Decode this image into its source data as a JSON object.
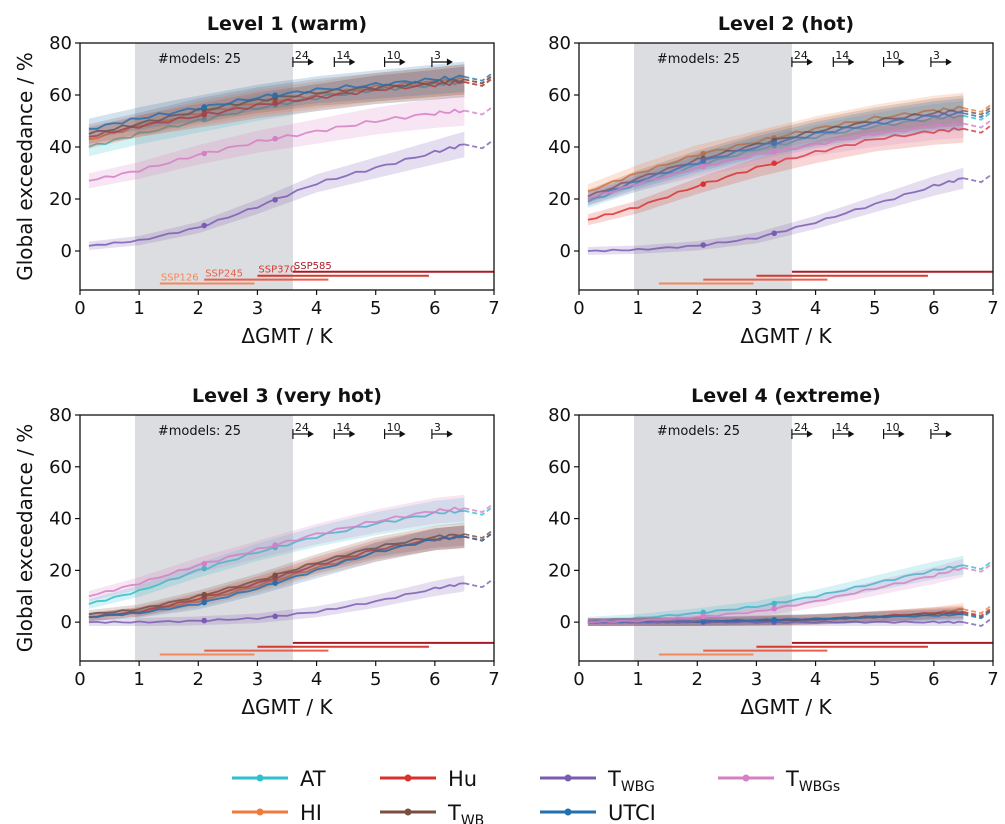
{
  "chart_data": [
    {
      "type": "line",
      "title": "Level 1 (warm)",
      "xlabel": "ΔGMT / K",
      "ylabel": "Global exceedance / %",
      "xlim": [
        0,
        7
      ],
      "ylim": [
        -15,
        80
      ],
      "xticks": [
        "0",
        "1",
        "2",
        "3",
        "4",
        "5",
        "6",
        "7"
      ],
      "yticks": [
        "0",
        "20",
        "40",
        "60",
        "80"
      ],
      "shaded_x": [
        0.93,
        3.6
      ],
      "model_count_label": "#models: 25",
      "model_arrows": [
        {
          "x": 3.6,
          "label": "24"
        },
        {
          "x": 4.3,
          "label": "14"
        },
        {
          "x": 5.15,
          "label": "10"
        },
        {
          "x": 5.95,
          "label": "3"
        }
      ],
      "scenario_ranges": [
        {
          "name": "SSP126",
          "x0": 1.35,
          "x1": 2.95,
          "y": -12.5,
          "show_label": true
        },
        {
          "name": "SSP245",
          "x0": 2.1,
          "x1": 4.2,
          "y": -11,
          "show_label": true
        },
        {
          "name": "SSP370",
          "x0": 3.0,
          "x1": 5.9,
          "y": -9.5,
          "show_label": true
        },
        {
          "name": "SSP585",
          "x0": 3.6,
          "x1": 7.0,
          "y": -8,
          "show_label": true
        }
      ],
      "series": [
        {
          "name": "AT",
          "x": [
            0.15,
            1,
            2,
            3,
            4,
            5,
            6,
            6.5
          ],
          "values": [
            40,
            45,
            50,
            55,
            59,
            62,
            64,
            65
          ]
        },
        {
          "name": "HI",
          "x": [
            0.15,
            1,
            2,
            3,
            4,
            5,
            6,
            6.5
          ],
          "values": [
            43,
            48,
            53,
            57,
            60,
            63,
            65,
            66
          ]
        },
        {
          "name": "Hu",
          "x": [
            0.15,
            1,
            2,
            3,
            4,
            5,
            6,
            6.5
          ],
          "values": [
            44,
            48,
            52,
            56,
            59,
            62,
            64,
            65
          ]
        },
        {
          "name": "T_WB",
          "x": [
            0.15,
            1,
            2,
            3,
            4,
            5,
            6,
            6.5
          ],
          "values": [
            45,
            49,
            54,
            58,
            61,
            63,
            65,
            66
          ]
        },
        {
          "name": "T_WBG",
          "x": [
            0.15,
            1,
            2,
            3,
            4,
            5,
            6,
            6.5
          ],
          "values": [
            2,
            4,
            9,
            17,
            26,
            32,
            38,
            41
          ]
        },
        {
          "name": "UTCI",
          "x": [
            0.15,
            1,
            2,
            3,
            4,
            5,
            6,
            6.5
          ],
          "values": [
            47,
            51,
            55,
            59,
            62,
            64,
            66,
            67
          ]
        },
        {
          "name": "T_WBGs",
          "x": [
            0.15,
            1,
            2,
            3,
            4,
            5,
            6,
            6.5
          ],
          "values": [
            27,
            31,
            37,
            42,
            46,
            50,
            53,
            54
          ]
        }
      ]
    },
    {
      "type": "line",
      "title": "Level 2 (hot)",
      "xlabel": "ΔGMT / K",
      "ylabel": "",
      "xlim": [
        0,
        7
      ],
      "ylim": [
        -15,
        80
      ],
      "xticks": [
        "0",
        "1",
        "2",
        "3",
        "4",
        "5",
        "6",
        "7"
      ],
      "yticks": [
        "0",
        "20",
        "40",
        "60",
        "80"
      ],
      "shaded_x": [
        0.93,
        3.6
      ],
      "model_count_label": "#models: 25",
      "model_arrows": [
        {
          "x": 3.6,
          "label": "24"
        },
        {
          "x": 4.3,
          "label": "14"
        },
        {
          "x": 5.15,
          "label": "10"
        },
        {
          "x": 5.95,
          "label": "3"
        }
      ],
      "scenario_ranges": [
        {
          "name": "SSP126",
          "x0": 1.35,
          "x1": 2.95,
          "y": -12.5,
          "show_label": false
        },
        {
          "name": "SSP245",
          "x0": 2.1,
          "x1": 4.2,
          "y": -11,
          "show_label": false
        },
        {
          "name": "SSP370",
          "x0": 3.0,
          "x1": 5.9,
          "y": -9.5,
          "show_label": false
        },
        {
          "name": "SSP585",
          "x0": 3.6,
          "x1": 7.0,
          "y": -8,
          "show_label": false
        }
      ],
      "series": [
        {
          "name": "AT",
          "x": [
            0.15,
            1,
            2,
            3,
            4,
            5,
            6,
            6.5
          ],
          "values": [
            19,
            26,
            33,
            39,
            44,
            48,
            51,
            52
          ]
        },
        {
          "name": "HI",
          "x": [
            0.15,
            1,
            2,
            3,
            4,
            5,
            6,
            6.5
          ],
          "values": [
            23,
            30,
            37,
            42,
            47,
            51,
            54,
            55
          ]
        },
        {
          "name": "Hu",
          "x": [
            0.15,
            1,
            2,
            3,
            4,
            5,
            6,
            6.5
          ],
          "values": [
            12,
            17,
            25,
            32,
            38,
            43,
            46,
            47
          ]
        },
        {
          "name": "T_WB",
          "x": [
            0.15,
            1,
            2,
            3,
            4,
            5,
            6,
            6.5
          ],
          "values": [
            21,
            28,
            35,
            41,
            46,
            50,
            53,
            54
          ]
        },
        {
          "name": "T_WBG",
          "x": [
            0.15,
            1,
            2,
            3,
            4,
            5,
            6,
            6.5
          ],
          "values": [
            0,
            0.5,
            2,
            5,
            11,
            18,
            25,
            28
          ]
        },
        {
          "name": "UTCI",
          "x": [
            0.15,
            1,
            2,
            3,
            4,
            5,
            6,
            6.5
          ],
          "values": [
            20,
            27,
            34,
            40,
            45,
            49,
            52,
            53
          ]
        },
        {
          "name": "T_WBGs",
          "x": [
            0.15,
            1,
            2,
            3,
            4,
            5,
            6,
            6.5
          ],
          "values": [
            20,
            26,
            32,
            37,
            41,
            45,
            48,
            49
          ]
        }
      ]
    },
    {
      "type": "line",
      "title": "Level 3 (very hot)",
      "xlabel": "ΔGMT / K",
      "ylabel": "Global exceedance / %",
      "xlim": [
        0,
        7
      ],
      "ylim": [
        -15,
        80
      ],
      "xticks": [
        "0",
        "1",
        "2",
        "3",
        "4",
        "5",
        "6",
        "7"
      ],
      "yticks": [
        "0",
        "20",
        "40",
        "60",
        "80"
      ],
      "shaded_x": [
        0.93,
        3.6
      ],
      "model_count_label": "#models: 25",
      "model_arrows": [
        {
          "x": 3.6,
          "label": "24"
        },
        {
          "x": 4.3,
          "label": "14"
        },
        {
          "x": 5.15,
          "label": "10"
        },
        {
          "x": 5.95,
          "label": "3"
        }
      ],
      "scenario_ranges": [
        {
          "name": "SSP126",
          "x0": 1.35,
          "x1": 2.95,
          "y": -12.5,
          "show_label": false
        },
        {
          "name": "SSP245",
          "x0": 2.1,
          "x1": 4.2,
          "y": -11,
          "show_label": false
        },
        {
          "name": "SSP370",
          "x0": 3.0,
          "x1": 5.9,
          "y": -9.5,
          "show_label": false
        },
        {
          "name": "SSP585",
          "x0": 3.6,
          "x1": 7.0,
          "y": -8,
          "show_label": false
        }
      ],
      "series": [
        {
          "name": "AT",
          "x": [
            0.15,
            1,
            2,
            3,
            4,
            5,
            6,
            6.5
          ],
          "values": [
            7,
            12,
            20,
            27,
            33,
            38,
            42,
            43
          ]
        },
        {
          "name": "HI",
          "x": [
            0.15,
            1,
            2,
            3,
            4,
            5,
            6,
            6.5
          ],
          "values": [
            2,
            4,
            8,
            14,
            21,
            27,
            32,
            33
          ]
        },
        {
          "name": "Hu",
          "x": [
            0.15,
            1,
            2,
            3,
            4,
            5,
            6,
            6.5
          ],
          "values": [
            2,
            4,
            9,
            15,
            22,
            28,
            32,
            33
          ]
        },
        {
          "name": "T_WB",
          "x": [
            0.15,
            1,
            2,
            3,
            4,
            5,
            6,
            6.5
          ],
          "values": [
            3,
            5,
            10,
            16,
            23,
            29,
            33,
            34
          ]
        },
        {
          "name": "T_WBG",
          "x": [
            0.15,
            1,
            2,
            3,
            4,
            5,
            6,
            6.5
          ],
          "values": [
            0,
            0,
            0.5,
            1.5,
            4,
            8,
            13,
            15
          ]
        },
        {
          "name": "UTCI",
          "x": [
            0.15,
            1,
            2,
            3,
            4,
            5,
            6,
            6.5
          ],
          "values": [
            2,
            3.5,
            7,
            13,
            20,
            27,
            32,
            33
          ]
        },
        {
          "name": "T_WBGs",
          "x": [
            0.15,
            1,
            2,
            3,
            4,
            5,
            6,
            6.5
          ],
          "values": [
            10,
            15,
            22,
            28,
            34,
            39,
            43,
            44
          ]
        }
      ]
    },
    {
      "type": "line",
      "title": "Level 4 (extreme)",
      "xlabel": "ΔGMT / K",
      "ylabel": "",
      "xlim": [
        0,
        7
      ],
      "ylim": [
        -15,
        80
      ],
      "xticks": [
        "0",
        "1",
        "2",
        "3",
        "4",
        "5",
        "6",
        "7"
      ],
      "yticks": [
        "0",
        "20",
        "40",
        "60",
        "80"
      ],
      "shaded_x": [
        0.93,
        3.6
      ],
      "model_count_label": "#models: 25",
      "model_arrows": [
        {
          "x": 3.6,
          "label": "24"
        },
        {
          "x": 4.3,
          "label": "14"
        },
        {
          "x": 5.15,
          "label": "10"
        },
        {
          "x": 5.95,
          "label": "3"
        }
      ],
      "scenario_ranges": [
        {
          "name": "SSP126",
          "x0": 1.35,
          "x1": 2.95,
          "y": -12.5,
          "show_label": false
        },
        {
          "name": "SSP245",
          "x0": 2.1,
          "x1": 4.2,
          "y": -11,
          "show_label": false
        },
        {
          "name": "SSP370",
          "x0": 3.0,
          "x1": 5.9,
          "y": -9.5,
          "show_label": false
        },
        {
          "name": "SSP585",
          "x0": 3.6,
          "x1": 7.0,
          "y": -8,
          "show_label": false
        }
      ],
      "series": [
        {
          "name": "AT",
          "x": [
            0.15,
            1,
            2,
            3,
            4,
            5,
            6,
            6.5
          ],
          "values": [
            0.5,
            1.5,
            3.5,
            6,
            10,
            15,
            20,
            22
          ]
        },
        {
          "name": "HI",
          "x": [
            0.15,
            1,
            2,
            3,
            4,
            5,
            6,
            6.5
          ],
          "values": [
            0,
            0,
            0.2,
            0.5,
            1,
            2,
            3.5,
            5
          ]
        },
        {
          "name": "Hu",
          "x": [
            0.15,
            1,
            2,
            3,
            4,
            5,
            6,
            6.5
          ],
          "values": [
            0,
            0,
            0.2,
            0.6,
            1.2,
            2.2,
            3.5,
            4
          ]
        },
        {
          "name": "T_WB",
          "x": [
            0.15,
            1,
            2,
            3,
            4,
            5,
            6,
            6.5
          ],
          "values": [
            0,
            0,
            0.2,
            0.5,
            1,
            2,
            3,
            3.5
          ]
        },
        {
          "name": "T_WBG",
          "x": [
            0.15,
            1,
            2,
            3,
            4,
            5,
            6,
            6.5
          ],
          "values": [
            0,
            0,
            0,
            0,
            0,
            0,
            0,
            0
          ]
        },
        {
          "name": "UTCI",
          "x": [
            0.15,
            1,
            2,
            3,
            4,
            5,
            6,
            6.5
          ],
          "values": [
            0,
            0.2,
            0.4,
            0.8,
            1.2,
            2,
            2.5,
            3
          ]
        },
        {
          "name": "T_WBGs",
          "x": [
            0.15,
            1,
            2,
            3,
            4,
            5,
            6,
            6.5
          ],
          "values": [
            0,
            0.5,
            2,
            4,
            8,
            13,
            18,
            21
          ]
        }
      ]
    }
  ],
  "legend": {
    "entries": [
      {
        "key": "AT",
        "main": "AT",
        "sub": ""
      },
      {
        "key": "HI",
        "main": "HI",
        "sub": ""
      },
      {
        "key": "Hu",
        "main": "Hu",
        "sub": ""
      },
      {
        "key": "T_WB",
        "main": "T",
        "sub": "WB"
      },
      {
        "key": "T_WBG",
        "main": "T",
        "sub": "WBG"
      },
      {
        "key": "UTCI",
        "main": "UTCI",
        "sub": ""
      },
      {
        "key": "T_WBGs",
        "main": "T",
        "sub": "WBGs"
      }
    ]
  },
  "colors": {
    "AT": "#2ec0cc",
    "HI": "#f07a3a",
    "Hu": "#d9312f",
    "T_WB": "#7b4f3f",
    "T_WBG": "#7b5cb3",
    "UTCI": "#2270b0",
    "T_WBGs": "#d67fc4",
    "SSP126": "#f08a5d",
    "SSP245": "#e8604a",
    "SSP370": "#d43a2f",
    "SSP585": "#aa1a26",
    "shade": "#dcdde0"
  }
}
